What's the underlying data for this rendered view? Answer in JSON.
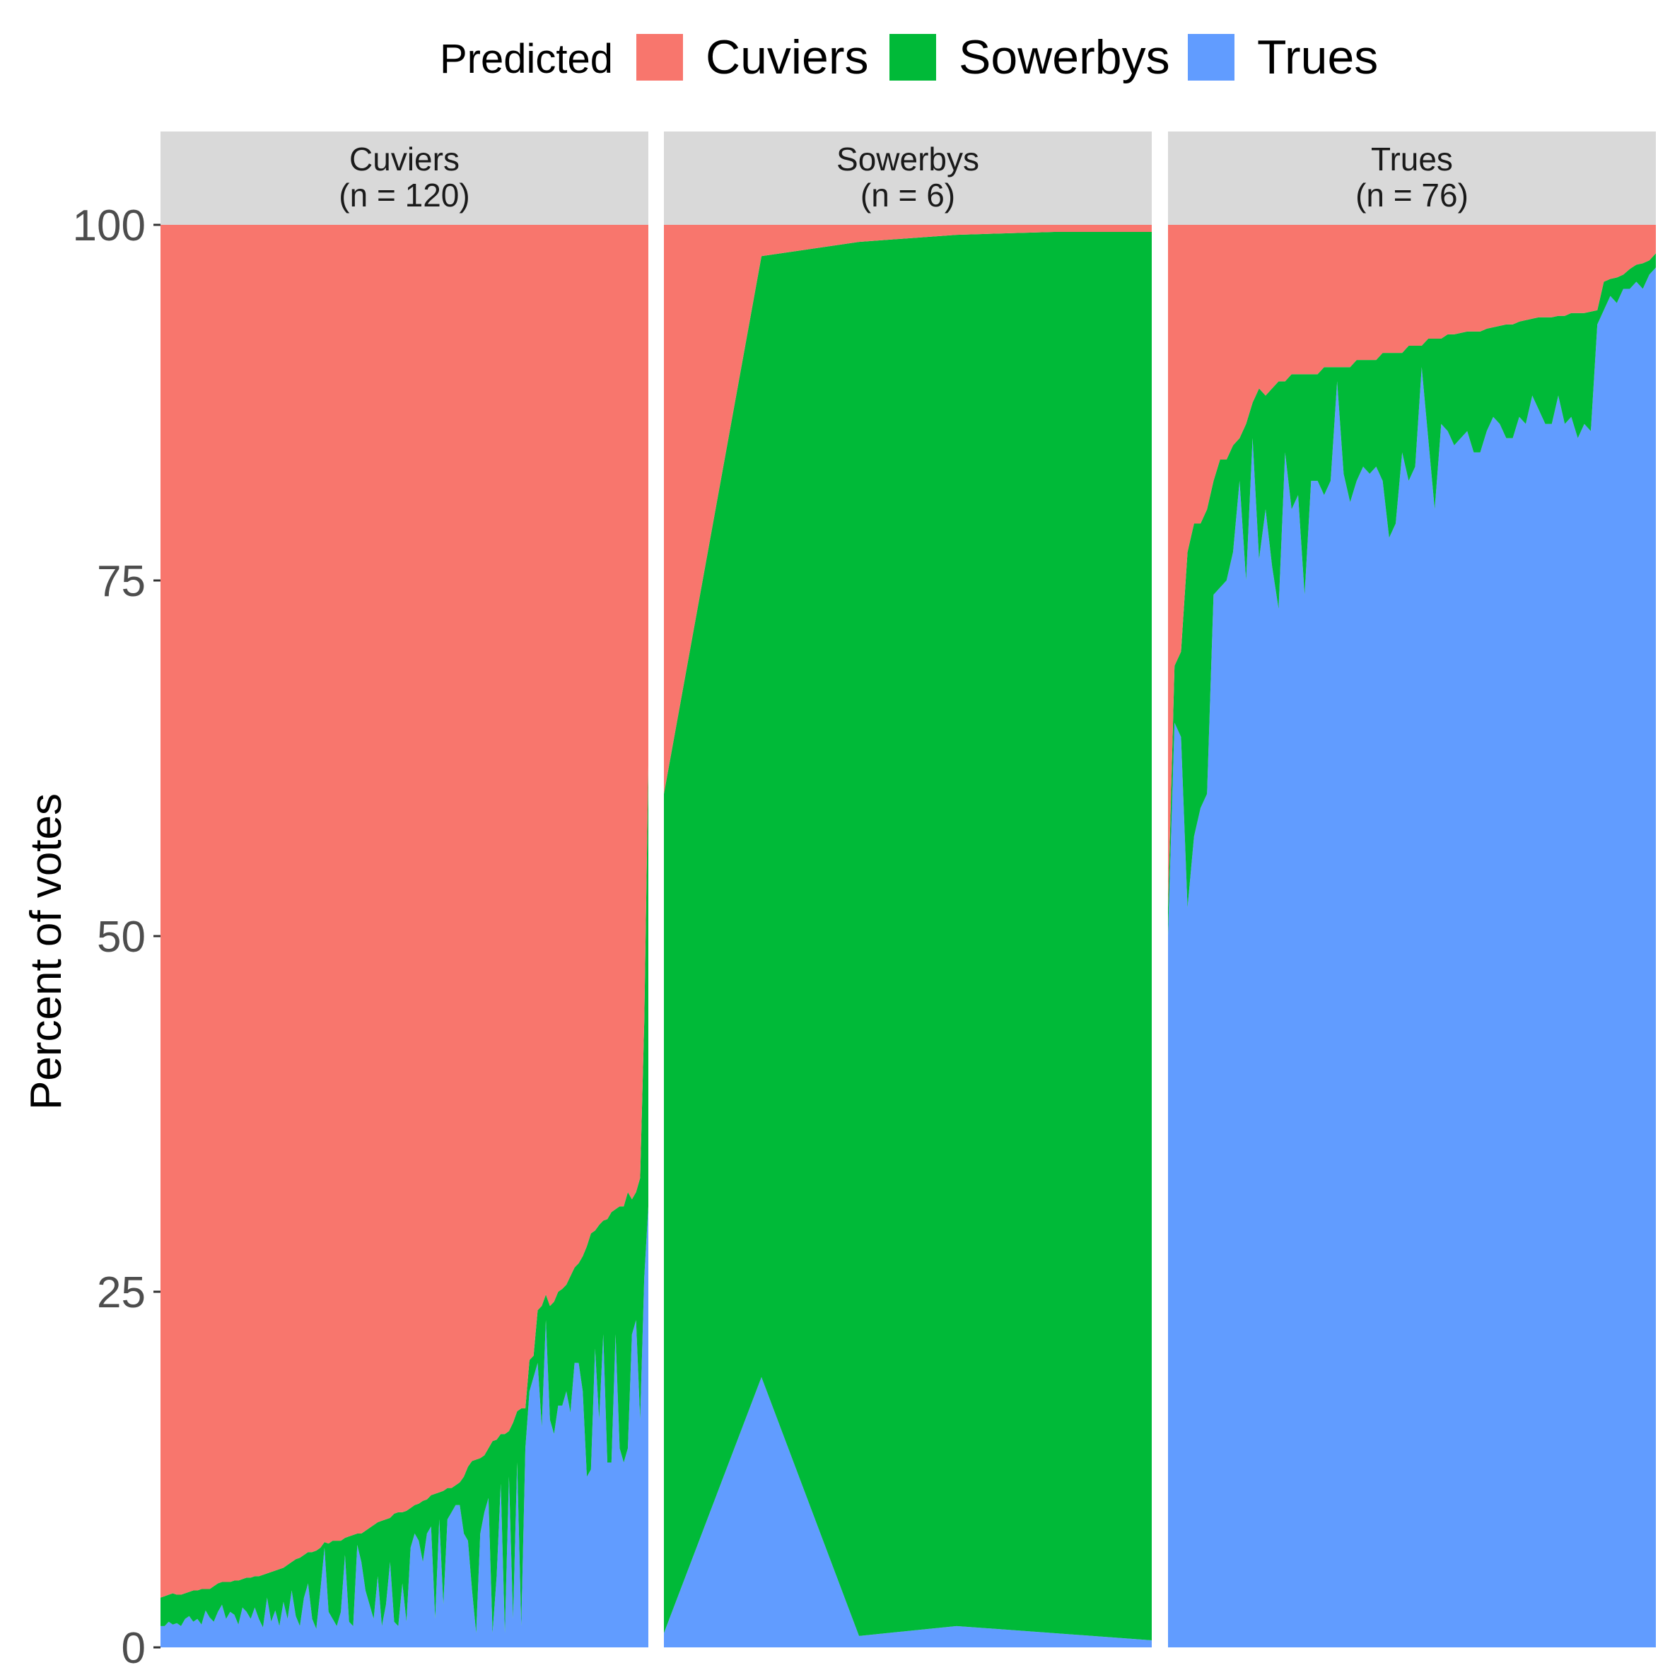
{
  "chart_data": {
    "type": "area",
    "ylabel": "Percent of votes",
    "xlabel": "",
    "title": "",
    "ylim": [
      0,
      100
    ],
    "yticks": [
      0,
      25,
      50,
      75,
      100
    ],
    "legend": {
      "title": "Predicted",
      "placement": "top",
      "entries": [
        {
          "name": "Cuviers",
          "color": "#F8766D"
        },
        {
          "name": "Sowerbys",
          "color": "#00BA38"
        },
        {
          "name": "Trues",
          "color": "#619CFF"
        }
      ]
    },
    "stack_order_bottom_to_top": [
      "Trues",
      "Sowerbys",
      "Cuviers"
    ],
    "panels": [
      {
        "strip": "Cuviers",
        "n_label": "(n = 120)",
        "trues": [
          1.5,
          1.5,
          1.8,
          1.6,
          1.7,
          1.5,
          2.0,
          2.2,
          1.8,
          2.0,
          1.6,
          2.6,
          2.1,
          1.8,
          2.5,
          3.0,
          2.0,
          2.5,
          2.3,
          1.6,
          2.8,
          2.5,
          2.0,
          2.8,
          2.0,
          1.4,
          3.5,
          1.8,
          2.6,
          1.5,
          3.2,
          2.0,
          4.0,
          2.2,
          1.5,
          3.5,
          4.5,
          2.0,
          1.3,
          4.0,
          7.0,
          2.5,
          2.0,
          1.5,
          2.5,
          6.5,
          1.8,
          1.5,
          7.2,
          6.0,
          4.0,
          3.0,
          2.0,
          5.0,
          1.5,
          3.0,
          6.0,
          1.8,
          1.5,
          4.5,
          1.8,
          7.0,
          8.0,
          7.5,
          6.0,
          8.0,
          8.5,
          2.0,
          9.0,
          3.0,
          9.0,
          9.5,
          10.0,
          10.0,
          8.0,
          7.5,
          4.0,
          1.0,
          8.0,
          9.5,
          10.5,
          1.0,
          5.0,
          11.5,
          1.0,
          12.0,
          2.0,
          13.0,
          1.5,
          14.0,
          18.0,
          19.0,
          20.0,
          15.5,
          23.0,
          16.0,
          15.0,
          17.0,
          17.0,
          18.0,
          16.5,
          20.0,
          20.0,
          18.0,
          12.0,
          12.5,
          21.0,
          16.0,
          22.0,
          13.0,
          13.0,
          22.0,
          14.0,
          13.0,
          14.0,
          22.0,
          23.0,
          16.0,
          26.0,
          31.0
        ],
        "sowerbys": [
          2.0,
          2.1,
          1.9,
          2.2,
          2.0,
          2.2,
          1.8,
          1.7,
          2.2,
          2.0,
          2.5,
          1.5,
          2.0,
          2.5,
          2.0,
          1.6,
          2.6,
          2.1,
          2.4,
          3.1,
          2.0,
          2.4,
          2.9,
          2.2,
          3.0,
          3.7,
          1.7,
          3.5,
          2.8,
          4.0,
          2.4,
          3.8,
          2.0,
          4.0,
          4.8,
          3.0,
          2.2,
          4.7,
          5.5,
          3.0,
          0.4,
          4.8,
          5.5,
          6.0,
          5.0,
          1.2,
          6.0,
          6.4,
          0.8,
          2.0,
          4.2,
          5.4,
          6.6,
          3.8,
          7.4,
          6.0,
          3.1,
          7.6,
          8.0,
          5.0,
          7.8,
          2.8,
          2.0,
          2.6,
          4.3,
          2.4,
          2.2,
          8.8,
          1.9,
          8.0,
          2.2,
          1.7,
          1.4,
          1.6,
          4.0,
          5.2,
          9.1,
          12.2,
          5.3,
          4.0,
          3.5,
          13.5,
          9.6,
          3.5,
          14.0,
          3.2,
          13.8,
          3.6,
          15.3,
          2.8,
          2.2,
          1.5,
          3.7,
          8.5,
          1.8,
          8.0,
          9.3,
          8.0,
          8.2,
          7.5,
          9.6,
          6.7,
          7.0,
          9.5,
          16.2,
          16.6,
          8.3,
          13.7,
          8.0,
          17.1,
          17.6,
          8.8,
          17.0,
          18.0,
          18.0,
          9.5,
          9.0,
          17.0,
          18.0,
          31.0
        ],
        "cuviers": [
          96.5,
          96.4,
          96.3,
          96.2,
          96.3,
          96.3,
          96.2,
          96.1,
          96.0,
          96.0,
          95.9,
          95.9,
          95.9,
          95.7,
          95.5,
          95.4,
          95.4,
          95.4,
          95.3,
          95.3,
          95.2,
          95.1,
          95.1,
          95.0,
          95.0,
          94.9,
          94.8,
          94.7,
          94.6,
          94.5,
          94.4,
          94.2,
          94.0,
          93.8,
          93.7,
          93.5,
          93.3,
          93.3,
          93.2,
          93.0,
          92.6,
          92.7,
          92.5,
          92.5,
          92.5,
          92.3,
          92.2,
          92.1,
          92.0,
          92.0,
          91.8,
          91.6,
          91.4,
          91.2,
          91.1,
          91.0,
          90.9,
          90.6,
          90.5,
          90.5,
          90.4,
          90.2,
          90.0,
          89.9,
          89.7,
          89.6,
          89.3,
          89.2,
          89.1,
          89.0,
          88.8,
          88.8,
          88.6,
          88.4,
          88.0,
          87.3,
          86.9,
          86.8,
          86.7,
          86.5,
          86.0,
          85.5,
          85.4,
          85.0,
          85.0,
          84.8,
          84.2,
          83.4,
          83.2,
          83.2,
          79.8,
          79.5,
          76.3,
          76.0,
          75.2,
          76.0,
          75.7,
          75.0,
          74.8,
          74.5,
          73.9,
          73.3,
          73.0,
          72.5,
          71.8,
          70.9,
          70.7,
          70.3,
          70.0,
          69.9,
          69.4,
          69.2,
          69.0,
          69.0,
          68.0,
          68.5,
          68.0,
          67.0,
          56.0,
          38.0
        ]
      },
      {
        "strip": "Sowerbys",
        "n_label": "(n = 6)",
        "trues": [
          1.0,
          19.0,
          0.8,
          1.5,
          1.0,
          0.5
        ],
        "sowerbys": [
          59.0,
          78.8,
          98.0,
          97.8,
          98.5,
          99.0
        ],
        "cuviers": [
          40.0,
          2.2,
          1.2,
          0.7,
          0.5,
          0.5
        ]
      },
      {
        "strip": "Trues",
        "n_label": "(n = 76)",
        "trues": [
          50.0,
          65.0,
          64.0,
          52.0,
          57.0,
          59.0,
          60.0,
          74.0,
          74.5,
          75.0,
          77.0,
          82.0,
          75.0,
          85.0,
          76.5,
          80.0,
          76.0,
          73.0,
          84.0,
          80.0,
          81.0,
          74.0,
          82.0,
          82.0,
          81.0,
          82.0,
          89.0,
          82.5,
          80.5,
          82.0,
          83.0,
          82.5,
          83.0,
          82.0,
          78.0,
          79.0,
          84.0,
          82.0,
          83.0,
          90.0,
          85.0,
          80.0,
          86.0,
          85.5,
          84.5,
          85.0,
          85.5,
          84.0,
          84.0,
          85.5,
          86.5,
          86.0,
          85.0,
          85.0,
          86.5,
          86.0,
          88.0,
          87.0,
          86.0,
          86.0,
          88.0,
          86.0,
          86.5,
          85.0,
          86.0,
          85.5,
          93.0,
          94.0,
          95.0,
          94.5,
          95.5,
          95.5,
          96.0,
          95.5,
          96.5,
          97.0
        ],
        "sowerbys": [
          2.0,
          4.0,
          6.0,
          25.0,
          22.0,
          20.0,
          20.0,
          8.0,
          9.0,
          8.5,
          7.5,
          3.0,
          11.0,
          2.5,
          12.0,
          8.0,
          12.5,
          16.0,
          5.0,
          9.5,
          8.5,
          15.5,
          7.5,
          7.5,
          9.0,
          8.0,
          1.0,
          7.5,
          9.5,
          8.5,
          7.5,
          8.0,
          7.5,
          9.0,
          13.0,
          12.0,
          7.0,
          9.5,
          8.5,
          1.5,
          7.0,
          12.0,
          6.0,
          6.8,
          7.8,
          7.4,
          7.0,
          8.5,
          8.5,
          7.2,
          6.3,
          6.9,
          8.0,
          8.0,
          6.7,
          7.3,
          5.4,
          6.5,
          7.5,
          7.5,
          5.6,
          7.6,
          7.3,
          8.8,
          7.8,
          8.4,
          1.0,
          2.0,
          1.2,
          1.8,
          1.0,
          1.4,
          1.2,
          1.8,
          1.0,
          1.0
        ],
        "cuviers": [
          48.0,
          31.0,
          30.0,
          23.0,
          21.0,
          21.0,
          20.0,
          18.0,
          16.5,
          16.5,
          15.5,
          15.0,
          14.0,
          12.5,
          11.5,
          12.0,
          11.5,
          11.0,
          11.0,
          10.5,
          10.5,
          10.5,
          10.5,
          10.5,
          10.0,
          10.0,
          10.0,
          10.0,
          10.0,
          9.5,
          9.5,
          9.5,
          9.5,
          9.0,
          9.0,
          9.0,
          9.0,
          8.5,
          8.5,
          8.5,
          8.0,
          8.0,
          8.0,
          7.7,
          7.7,
          7.6,
          7.5,
          7.5,
          7.5,
          7.3,
          7.2,
          7.1,
          7.0,
          7.0,
          6.8,
          6.7,
          6.6,
          6.5,
          6.5,
          6.5,
          6.4,
          6.4,
          6.2,
          6.2,
          6.2,
          6.1,
          6.0,
          4.0,
          3.8,
          3.7,
          3.5,
          3.1,
          2.8,
          2.7,
          2.5,
          2.0
        ]
      }
    ]
  }
}
